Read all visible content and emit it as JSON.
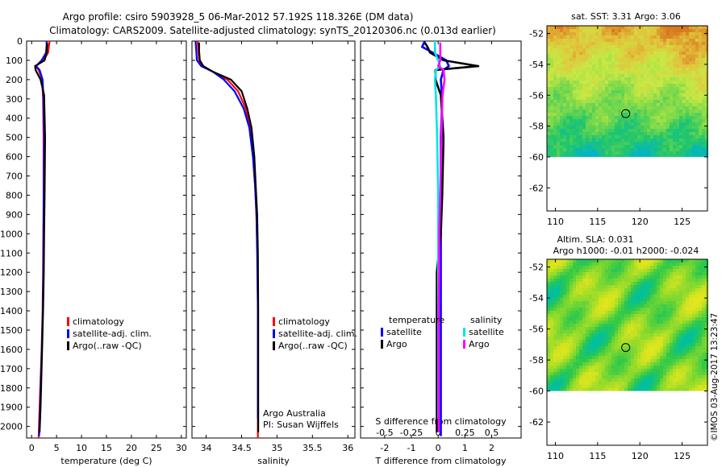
{
  "figure": {
    "title_line1": "Argo profile: csiro 5903928_5 06-Mar-2012 57.192S 118.326E (DM data)",
    "title_line2": "Climatology: CARS2009. Satellite-adjusted climatology: synTS_20120306.nc (0.013d earlier)",
    "credit": "©IMOS 03-Aug-2017 13:23:47",
    "colors": {
      "climatology": "#ff0000",
      "satellite": "#0000ff",
      "argo": "#000000",
      "sal_satellite": "#00e5e5",
      "sal_argo": "#ff00ff"
    }
  },
  "chart_data": [
    {
      "id": "temperature",
      "type": "line",
      "xlabel": "temperature (deg C)",
      "ylabel": "",
      "xlim": [
        -1,
        31
      ],
      "ylim": [
        2060,
        0
      ],
      "xticks": [
        0,
        5,
        10,
        15,
        20,
        25,
        30
      ],
      "xtick_labels": [
        "0",
        "5",
        "10",
        "15",
        "20",
        "25",
        "30"
      ],
      "yticks": [
        0,
        100,
        200,
        300,
        400,
        500,
        600,
        700,
        800,
        900,
        1000,
        1100,
        1200,
        1300,
        1400,
        1500,
        1600,
        1700,
        1800,
        1900,
        2000
      ],
      "legend": [
        "climatology",
        "satellite-adj. clim.",
        "Argo(..raw -QC)"
      ],
      "series": [
        {
          "name": "climatology",
          "x": [
            3.6,
            3.5,
            3.3,
            2.4,
            0.8,
            1.4,
            2.1,
            2.3,
            2.4,
            2.4,
            2.35,
            2.3,
            2.2,
            2.0,
            1.6,
            1.4
          ],
          "y": [
            0,
            20,
            60,
            100,
            130,
            150,
            200,
            300,
            500,
            800,
            1000,
            1200,
            1400,
            1600,
            1900,
            2060
          ]
        },
        {
          "name": "satellite-adj. clim.",
          "x": [
            3.0,
            3.0,
            2.9,
            2.0,
            0.9,
            1.6,
            2.2,
            2.4,
            2.5,
            2.45,
            2.4,
            2.35,
            2.25,
            2.05,
            1.7,
            1.5
          ],
          "y": [
            0,
            20,
            60,
            100,
            130,
            150,
            200,
            300,
            500,
            800,
            1000,
            1200,
            1400,
            1600,
            1900,
            2050
          ]
        },
        {
          "name": "Argo(..raw -QC)",
          "x": [
            3.1,
            3.1,
            3.0,
            2.6,
            0.7,
            0.8,
            1.8,
            2.5,
            2.7,
            2.6,
            2.5,
            2.45,
            2.3,
            2.1,
            1.8,
            1.6
          ],
          "y": [
            8,
            20,
            60,
            100,
            130,
            150,
            200,
            280,
            500,
            800,
            1000,
            1200,
            1400,
            1600,
            1900,
            2030
          ]
        }
      ]
    },
    {
      "id": "salinity",
      "type": "line",
      "xlabel": "salinity",
      "ylabel": "",
      "xlim": [
        33.8,
        36.1
      ],
      "ylim": [
        2060,
        0
      ],
      "xticks": [
        34,
        34.5,
        35,
        35.5,
        36
      ],
      "xtick_labels": [
        "34",
        "34.5",
        "35",
        "35.5",
        "36"
      ],
      "legend": [
        "climatology",
        "satellite-adj. clim.",
        "Argo(..raw -QC)"
      ],
      "annotation": [
        "Argo Australia",
        "PI: Susan Wijffels"
      ],
      "series": [
        {
          "name": "climatology",
          "x": [
            33.88,
            33.89,
            33.9,
            33.94,
            34.1,
            34.3,
            34.45,
            34.56,
            34.62,
            34.665,
            34.69,
            34.71,
            34.725,
            34.73,
            34.73,
            34.73
          ],
          "y": [
            0,
            50,
            100,
            130,
            160,
            200,
            260,
            350,
            450,
            600,
            750,
            900,
            1100,
            1400,
            1800,
            2060
          ]
        },
        {
          "name": "satellite-adj. clim.",
          "x": [
            33.85,
            33.86,
            33.87,
            33.93,
            34.1,
            34.25,
            34.4,
            34.53,
            34.61,
            34.66,
            34.69,
            34.71,
            34.72,
            34.73,
            34.73,
            34.73
          ],
          "y": [
            0,
            50,
            100,
            130,
            160,
            200,
            260,
            350,
            450,
            600,
            750,
            900,
            1100,
            1400,
            1800,
            1960
          ]
        },
        {
          "name": "Argo(..raw -QC)",
          "x": [
            33.9,
            33.9,
            33.91,
            33.96,
            34.1,
            34.35,
            34.5,
            34.58,
            34.64,
            34.68,
            34.7,
            34.72,
            34.73,
            34.735,
            34.735,
            34.735
          ],
          "y": [
            8,
            50,
            100,
            130,
            160,
            200,
            260,
            350,
            450,
            600,
            750,
            900,
            1100,
            1400,
            1800,
            2030
          ]
        }
      ]
    },
    {
      "id": "difference",
      "type": "line",
      "xlabel": "T difference from climatology",
      "xlabel2": "S difference from climatology",
      "xlim": [
        -2.9,
        3.1
      ],
      "ylim": [
        2060,
        0
      ],
      "xticks": [
        -2,
        -1,
        0,
        1,
        2
      ],
      "xtick_labels": [
        "-2",
        "-1",
        "0",
        "1",
        "2"
      ],
      "xticks_s": [
        -0.5,
        -0.25,
        0,
        0.25,
        0.5
      ],
      "xtick_labels_s": [
        "-0.5",
        "-0.25",
        "0",
        "0.25",
        "0.5"
      ],
      "legend_headers": [
        "temperature",
        "salinity"
      ],
      "legend": [
        "satellite",
        "Argo",
        "satellite",
        "Argo"
      ],
      "series": [
        {
          "name": "T satellite",
          "x": [
            -0.5,
            -0.6,
            -0.2,
            0.3,
            0.4,
            0.2,
            0.1,
            0.15,
            0.1,
            0.1,
            0.1,
            0.1,
            0.1,
            0.1,
            0.1,
            0.1
          ],
          "y": [
            0,
            30,
            60,
            100,
            130,
            150,
            200,
            300,
            500,
            800,
            1000,
            1200,
            1400,
            1600,
            1900,
            2050
          ]
        },
        {
          "name": "T Argo",
          "x": [
            -0.5,
            -0.4,
            -0.3,
            0.2,
            1.5,
            -0.1,
            -0.1,
            0.1,
            0.2,
            0.15,
            0.1,
            -0.05,
            -0.05,
            -0.05,
            -0.05,
            -0.05
          ],
          "y": [
            8,
            30,
            60,
            100,
            130,
            150,
            200,
            280,
            500,
            800,
            1000,
            1200,
            1400,
            1600,
            1900,
            2030
          ]
        },
        {
          "name": "S satellite",
          "x": [
            -0.03,
            -0.03,
            -0.03,
            0.0,
            0.02,
            -0.02,
            -0.03,
            -0.02,
            -0.01,
            0.0,
            0.0,
            0.0,
            0.0,
            0.0,
            0.0,
            0.0
          ],
          "y": [
            0,
            30,
            60,
            100,
            130,
            150,
            200,
            300,
            500,
            800,
            1000,
            1200,
            1400,
            1600,
            1900,
            1960
          ]
        },
        {
          "name": "S Argo",
          "x": [
            0.02,
            0.02,
            0.02,
            0.02,
            0.0,
            0.05,
            0.06,
            0.04,
            0.03,
            0.02,
            0.01,
            0.01,
            0.005,
            0.005,
            0.005,
            0.005
          ],
          "y": [
            8,
            30,
            60,
            100,
            130,
            150,
            200,
            280,
            500,
            800,
            1000,
            1200,
            1400,
            1600,
            1900,
            2030
          ]
        }
      ]
    },
    {
      "id": "sst_map",
      "type": "heatmap",
      "title": "sat. SST: 3.31  Argo: 3.06",
      "xlim": [
        109,
        128
      ],
      "ylim": [
        -63.5,
        -51.5
      ],
      "data_extent_y": [
        -60,
        -51.5
      ],
      "xticks": [
        110,
        115,
        120,
        125
      ],
      "xtick_labels": [
        "110",
        "115",
        "120",
        "125"
      ],
      "yticks": [
        -52,
        -54,
        -56,
        -58,
        -60,
        -62
      ],
      "ytick_labels": [
        "-52",
        "-54",
        "-56",
        "-58",
        "-60",
        "-62"
      ],
      "profile_location": [
        118.326,
        -57.192
      ],
      "field": "sst",
      "color_stops": [
        "#00b4c8",
        "#22c66a",
        "#7ed94a",
        "#c8e845",
        "#e2c33c",
        "#d8781e"
      ]
    },
    {
      "id": "sla_map",
      "type": "heatmap",
      "title": "Altim. SLA: 0.031",
      "subtitle": "Argo h1000: -0.01 h2000: -0.024",
      "xlim": [
        109,
        128
      ],
      "ylim": [
        -63.5,
        -51.5
      ],
      "data_extent_y": [
        -60,
        -51.5
      ],
      "xticks": [
        110,
        115,
        120,
        125
      ],
      "xtick_labels": [
        "110",
        "115",
        "120",
        "125"
      ],
      "yticks": [
        -52,
        -54,
        -56,
        -58,
        -60,
        -62
      ],
      "ytick_labels": [
        "-52",
        "-54",
        "-56",
        "-58",
        "-60",
        "-62"
      ],
      "profile_location": [
        118.326,
        -57.192
      ],
      "field": "sla",
      "color_stops": [
        "#00bfa0",
        "#2ec84a",
        "#86d92e",
        "#d4e41f",
        "#f2e81a"
      ]
    }
  ]
}
